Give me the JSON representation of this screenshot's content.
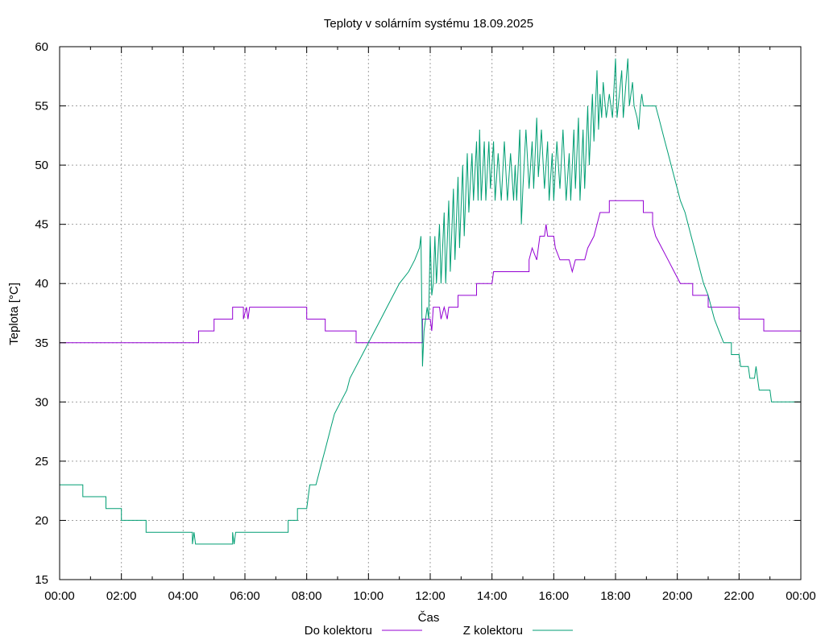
{
  "chart_data": {
    "type": "line",
    "title": "Teploty v solárním systému 18.09.2025",
    "xlabel": "Čas",
    "ylabel": "Teplota [°C]",
    "xlim": [
      0,
      24
    ],
    "ylim": [
      15,
      60
    ],
    "grid": true,
    "legend_position": "bottom-center",
    "x_ticks": [
      0,
      2,
      4,
      6,
      8,
      10,
      12,
      14,
      16,
      18,
      20,
      22,
      24
    ],
    "x_tick_labels": [
      "00:00",
      "02:00",
      "04:00",
      "06:00",
      "08:00",
      "10:00",
      "12:00",
      "14:00",
      "16:00",
      "18:00",
      "20:00",
      "22:00",
      "00:00"
    ],
    "y_ticks": [
      15,
      20,
      25,
      30,
      35,
      40,
      45,
      50,
      55,
      60
    ],
    "y_tick_labels": [
      "15",
      "20",
      "25",
      "30",
      "35",
      "40",
      "45",
      "50",
      "55",
      "60"
    ],
    "series": [
      {
        "name": "Do kolektoru",
        "color": "#9400d3",
        "points": [
          [
            0,
            35
          ],
          [
            4.5,
            35
          ],
          [
            4.5,
            36
          ],
          [
            5.0,
            36
          ],
          [
            5.0,
            37
          ],
          [
            5.6,
            37
          ],
          [
            5.6,
            38
          ],
          [
            5.95,
            38
          ],
          [
            5.95,
            37
          ],
          [
            6.05,
            38
          ],
          [
            6.1,
            37
          ],
          [
            6.15,
            38
          ],
          [
            8.0,
            38
          ],
          [
            8.0,
            37
          ],
          [
            8.6,
            37
          ],
          [
            8.6,
            36
          ],
          [
            9.6,
            36
          ],
          [
            9.6,
            35
          ],
          [
            11.75,
            35
          ],
          [
            11.75,
            37
          ],
          [
            12.0,
            37
          ],
          [
            12.05,
            36
          ],
          [
            12.1,
            38
          ],
          [
            12.3,
            38
          ],
          [
            12.35,
            37
          ],
          [
            12.45,
            38
          ],
          [
            12.55,
            37
          ],
          [
            12.6,
            38
          ],
          [
            12.9,
            38
          ],
          [
            12.9,
            39
          ],
          [
            13.5,
            39
          ],
          [
            13.5,
            40
          ],
          [
            14.0,
            40
          ],
          [
            14.05,
            41
          ],
          [
            15.2,
            41
          ],
          [
            15.2,
            42
          ],
          [
            15.3,
            43
          ],
          [
            15.45,
            42
          ],
          [
            15.55,
            44
          ],
          [
            15.7,
            44
          ],
          [
            15.75,
            45
          ],
          [
            15.8,
            44
          ],
          [
            16.0,
            44
          ],
          [
            16.05,
            43
          ],
          [
            16.2,
            42
          ],
          [
            16.5,
            42
          ],
          [
            16.6,
            41
          ],
          [
            16.7,
            42
          ],
          [
            17.0,
            42
          ],
          [
            17.1,
            43
          ],
          [
            17.3,
            44
          ],
          [
            17.4,
            45
          ],
          [
            17.5,
            46
          ],
          [
            17.8,
            46
          ],
          [
            17.8,
            47
          ],
          [
            18.9,
            47
          ],
          [
            18.9,
            46
          ],
          [
            19.2,
            46
          ],
          [
            19.2,
            45
          ],
          [
            19.3,
            44
          ],
          [
            19.5,
            43
          ],
          [
            19.7,
            42
          ],
          [
            19.9,
            41
          ],
          [
            20.1,
            40
          ],
          [
            20.5,
            40
          ],
          [
            20.5,
            39
          ],
          [
            21.0,
            39
          ],
          [
            21.0,
            38
          ],
          [
            22.0,
            38
          ],
          [
            22.0,
            37
          ],
          [
            22.8,
            37
          ],
          [
            22.8,
            36
          ],
          [
            24.0,
            36
          ]
        ]
      },
      {
        "name": "Z kolektoru",
        "color": "#009e73",
        "points": [
          [
            0,
            23
          ],
          [
            0.75,
            23
          ],
          [
            0.75,
            22
          ],
          [
            1.5,
            22
          ],
          [
            1.5,
            21
          ],
          [
            2.0,
            21
          ],
          [
            2.0,
            20
          ],
          [
            2.8,
            20
          ],
          [
            2.8,
            19
          ],
          [
            4.3,
            19
          ],
          [
            4.3,
            18
          ],
          [
            4.35,
            19
          ],
          [
            4.4,
            18
          ],
          [
            5.6,
            18
          ],
          [
            5.6,
            19
          ],
          [
            5.65,
            18
          ],
          [
            5.7,
            19
          ],
          [
            7.4,
            19
          ],
          [
            7.4,
            20
          ],
          [
            7.7,
            20
          ],
          [
            7.7,
            21
          ],
          [
            8.0,
            21
          ],
          [
            8.05,
            22
          ],
          [
            8.1,
            23
          ],
          [
            8.3,
            23
          ],
          [
            8.4,
            24
          ],
          [
            8.5,
            25
          ],
          [
            8.6,
            26
          ],
          [
            8.7,
            27
          ],
          [
            8.8,
            28
          ],
          [
            8.9,
            29
          ],
          [
            9.1,
            30
          ],
          [
            9.3,
            31
          ],
          [
            9.4,
            32
          ],
          [
            9.6,
            33
          ],
          [
            9.8,
            34
          ],
          [
            10.0,
            35
          ],
          [
            10.2,
            36
          ],
          [
            10.4,
            37
          ],
          [
            10.6,
            38
          ],
          [
            10.8,
            39
          ],
          [
            11.0,
            40
          ],
          [
            11.3,
            41
          ],
          [
            11.5,
            42
          ],
          [
            11.65,
            43
          ],
          [
            11.7,
            44
          ],
          [
            11.75,
            33
          ],
          [
            11.8,
            36
          ],
          [
            11.9,
            38
          ],
          [
            11.95,
            37
          ],
          [
            12.0,
            44
          ],
          [
            12.05,
            39
          ],
          [
            12.1,
            40
          ],
          [
            12.15,
            44
          ],
          [
            12.2,
            40
          ],
          [
            12.3,
            45
          ],
          [
            12.35,
            40
          ],
          [
            12.45,
            46
          ],
          [
            12.5,
            40
          ],
          [
            12.6,
            47
          ],
          [
            12.65,
            41
          ],
          [
            12.75,
            48
          ],
          [
            12.8,
            42
          ],
          [
            12.9,
            49
          ],
          [
            12.95,
            43
          ],
          [
            13.05,
            50
          ],
          [
            13.1,
            44
          ],
          [
            13.2,
            51
          ],
          [
            13.25,
            46
          ],
          [
            13.35,
            51
          ],
          [
            13.4,
            47
          ],
          [
            13.5,
            52
          ],
          [
            13.55,
            47
          ],
          [
            13.6,
            53
          ],
          [
            13.65,
            47
          ],
          [
            13.75,
            52
          ],
          [
            13.8,
            47
          ],
          [
            13.9,
            52
          ],
          [
            13.95,
            48
          ],
          [
            14.05,
            52
          ],
          [
            14.1,
            47
          ],
          [
            14.2,
            51
          ],
          [
            14.3,
            47
          ],
          [
            14.4,
            52
          ],
          [
            14.5,
            47
          ],
          [
            14.6,
            51
          ],
          [
            14.7,
            47
          ],
          [
            14.75,
            50
          ],
          [
            14.8,
            47
          ],
          [
            14.9,
            53
          ],
          [
            14.95,
            45
          ],
          [
            15.0,
            48
          ],
          [
            15.1,
            53
          ],
          [
            15.2,
            48
          ],
          [
            15.3,
            52
          ],
          [
            15.35,
            48
          ],
          [
            15.45,
            54
          ],
          [
            15.5,
            49
          ],
          [
            15.6,
            53
          ],
          [
            15.7,
            48
          ],
          [
            15.8,
            52
          ],
          [
            15.85,
            47
          ],
          [
            15.95,
            51
          ],
          [
            16.0,
            47
          ],
          [
            16.1,
            52
          ],
          [
            16.2,
            48
          ],
          [
            16.3,
            53
          ],
          [
            16.4,
            47
          ],
          [
            16.5,
            51
          ],
          [
            16.55,
            47
          ],
          [
            16.65,
            53
          ],
          [
            16.7,
            48
          ],
          [
            16.8,
            54
          ],
          [
            16.85,
            47
          ],
          [
            16.95,
            53
          ],
          [
            17.0,
            48
          ],
          [
            17.1,
            55
          ],
          [
            17.15,
            50
          ],
          [
            17.25,
            56
          ],
          [
            17.3,
            52
          ],
          [
            17.4,
            58
          ],
          [
            17.45,
            53
          ],
          [
            17.5,
            56
          ],
          [
            17.55,
            54
          ],
          [
            17.6,
            57
          ],
          [
            17.7,
            54
          ],
          [
            17.8,
            56
          ],
          [
            17.9,
            54
          ],
          [
            18.0,
            59
          ],
          [
            18.05,
            54
          ],
          [
            18.2,
            58
          ],
          [
            18.25,
            54
          ],
          [
            18.4,
            59
          ],
          [
            18.45,
            55
          ],
          [
            18.55,
            57
          ],
          [
            18.6,
            55
          ],
          [
            18.7,
            54
          ],
          [
            18.75,
            53
          ],
          [
            18.8,
            55
          ],
          [
            18.85,
            56
          ],
          [
            18.9,
            55
          ],
          [
            19.3,
            55
          ],
          [
            19.4,
            54
          ],
          [
            19.5,
            53
          ],
          [
            19.6,
            52
          ],
          [
            19.7,
            51
          ],
          [
            19.8,
            50
          ],
          [
            19.9,
            49
          ],
          [
            20.0,
            48
          ],
          [
            20.1,
            47
          ],
          [
            20.25,
            46
          ],
          [
            20.35,
            45
          ],
          [
            20.45,
            44
          ],
          [
            20.55,
            43
          ],
          [
            20.65,
            42
          ],
          [
            20.75,
            41
          ],
          [
            20.85,
            40
          ],
          [
            21.0,
            39
          ],
          [
            21.1,
            38
          ],
          [
            21.2,
            37
          ],
          [
            21.35,
            36
          ],
          [
            21.5,
            35
          ],
          [
            21.75,
            35
          ],
          [
            21.75,
            34
          ],
          [
            22.0,
            34
          ],
          [
            22.05,
            33
          ],
          [
            22.3,
            33
          ],
          [
            22.35,
            32
          ],
          [
            22.5,
            32
          ],
          [
            22.55,
            33
          ],
          [
            22.6,
            32
          ],
          [
            22.65,
            31
          ],
          [
            22.8,
            31
          ],
          [
            23.0,
            31
          ],
          [
            23.05,
            30
          ],
          [
            23.3,
            30
          ],
          [
            24.0,
            30
          ]
        ]
      }
    ]
  }
}
